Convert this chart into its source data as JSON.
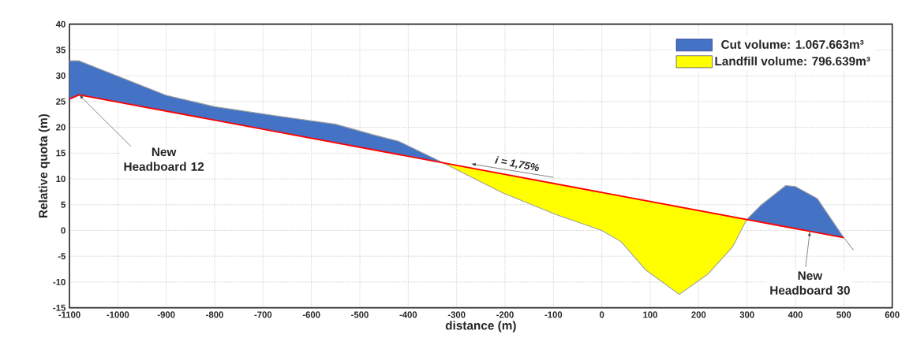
{
  "chart_data": {
    "type": "line",
    "xlabel": "distance (m)",
    "ylabel": "Relative quota (m)",
    "xlim": [
      -1100,
      600
    ],
    "ylim": [
      -15,
      40
    ],
    "xticks": [
      -1100,
      -1000,
      -900,
      -800,
      -700,
      -600,
      -500,
      -400,
      -300,
      -200,
      -100,
      0,
      100,
      200,
      300,
      400,
      500,
      600
    ],
    "yticks": [
      -15,
      -10,
      -5,
      0,
      5,
      10,
      15,
      20,
      25,
      30,
      35,
      40
    ],
    "grid": true,
    "legend": "top right",
    "series": [
      {
        "name": "Cut volume: 1.067.663m³",
        "type": "area",
        "color": "#4472c4",
        "x": [
          -1100,
          -1080,
          -900,
          -800,
          -670,
          -550,
          -470,
          -420,
          -330,
          -1080,
          -1100
        ],
        "values": [
          32.9,
          32.9,
          26.2,
          24.0,
          22.2,
          20.6,
          18.5,
          17.3,
          13.2,
          26.3,
          25.5
        ]
      },
      {
        "type": "area",
        "color": "#4472c4",
        "x": [
          300,
          330,
          380,
          400,
          445,
          500
        ],
        "values": [
          2.2,
          5.0,
          8.7,
          8.5,
          6.2,
          -1.4
        ]
      },
      {
        "name": "Landfill volume: 796.639m³",
        "type": "area",
        "color": "#ffff00",
        "x": [
          -330,
          -205,
          -95,
          0,
          40,
          90,
          160,
          220,
          270,
          300
        ],
        "values": [
          13.2,
          7.3,
          3.1,
          0.0,
          -2.2,
          -7.6,
          -12.4,
          -8.4,
          -3.2,
          2.2
        ]
      },
      {
        "color": "#a0a0a0",
        "x": [
          -1100,
          -1080,
          -900,
          -800,
          -670,
          -550,
          -470,
          -420,
          -330,
          -205,
          -95,
          0,
          40,
          90,
          160,
          220,
          270,
          300,
          330,
          380,
          400,
          445,
          500,
          520
        ],
        "values": [
          32.9,
          32.9,
          26.2,
          24.0,
          22.2,
          20.6,
          18.5,
          17.3,
          13.2,
          7.3,
          3.1,
          0.0,
          -2.2,
          -7.6,
          -12.4,
          -8.4,
          -3.2,
          2.2,
          5.0,
          8.7,
          8.5,
          6.2,
          -1.4,
          -3.8
        ]
      },
      {
        "color": "#ff0000",
        "x": [
          -1100,
          -1080,
          500
        ],
        "values": [
          25.5,
          26.3,
          -1.4
        ]
      }
    ],
    "annotations": [
      {
        "text": "New Headboard 12",
        "x": -1080,
        "y": 26.3
      },
      {
        "text": "New Headboard 30",
        "x": 430,
        "y": -0.2
      },
      "i = 1,75%"
    ]
  }
}
